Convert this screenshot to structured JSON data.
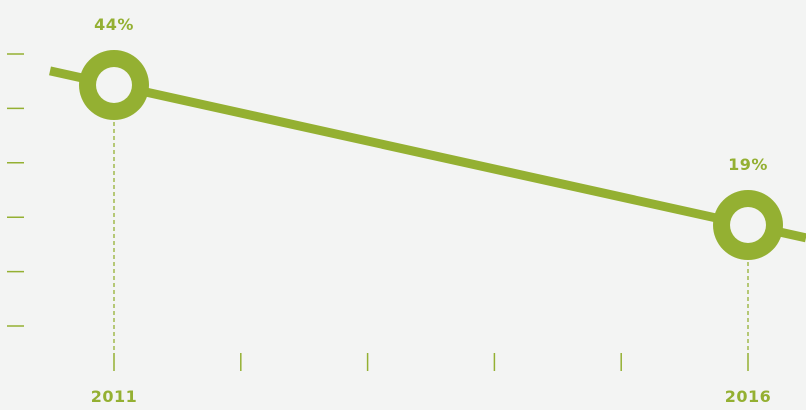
{
  "chart_data": {
    "type": "line",
    "x": [
      "2011",
      "2016"
    ],
    "series": [
      {
        "values": [
          44,
          19
        ],
        "labels": [
          "44%",
          "19%"
        ]
      }
    ],
    "tick_count_x": 6,
    "tick_count_y": 6,
    "grid": false
  },
  "colors": {
    "background": "#f3f4f3",
    "accent": "#94b032",
    "ticks": "#94b032"
  }
}
